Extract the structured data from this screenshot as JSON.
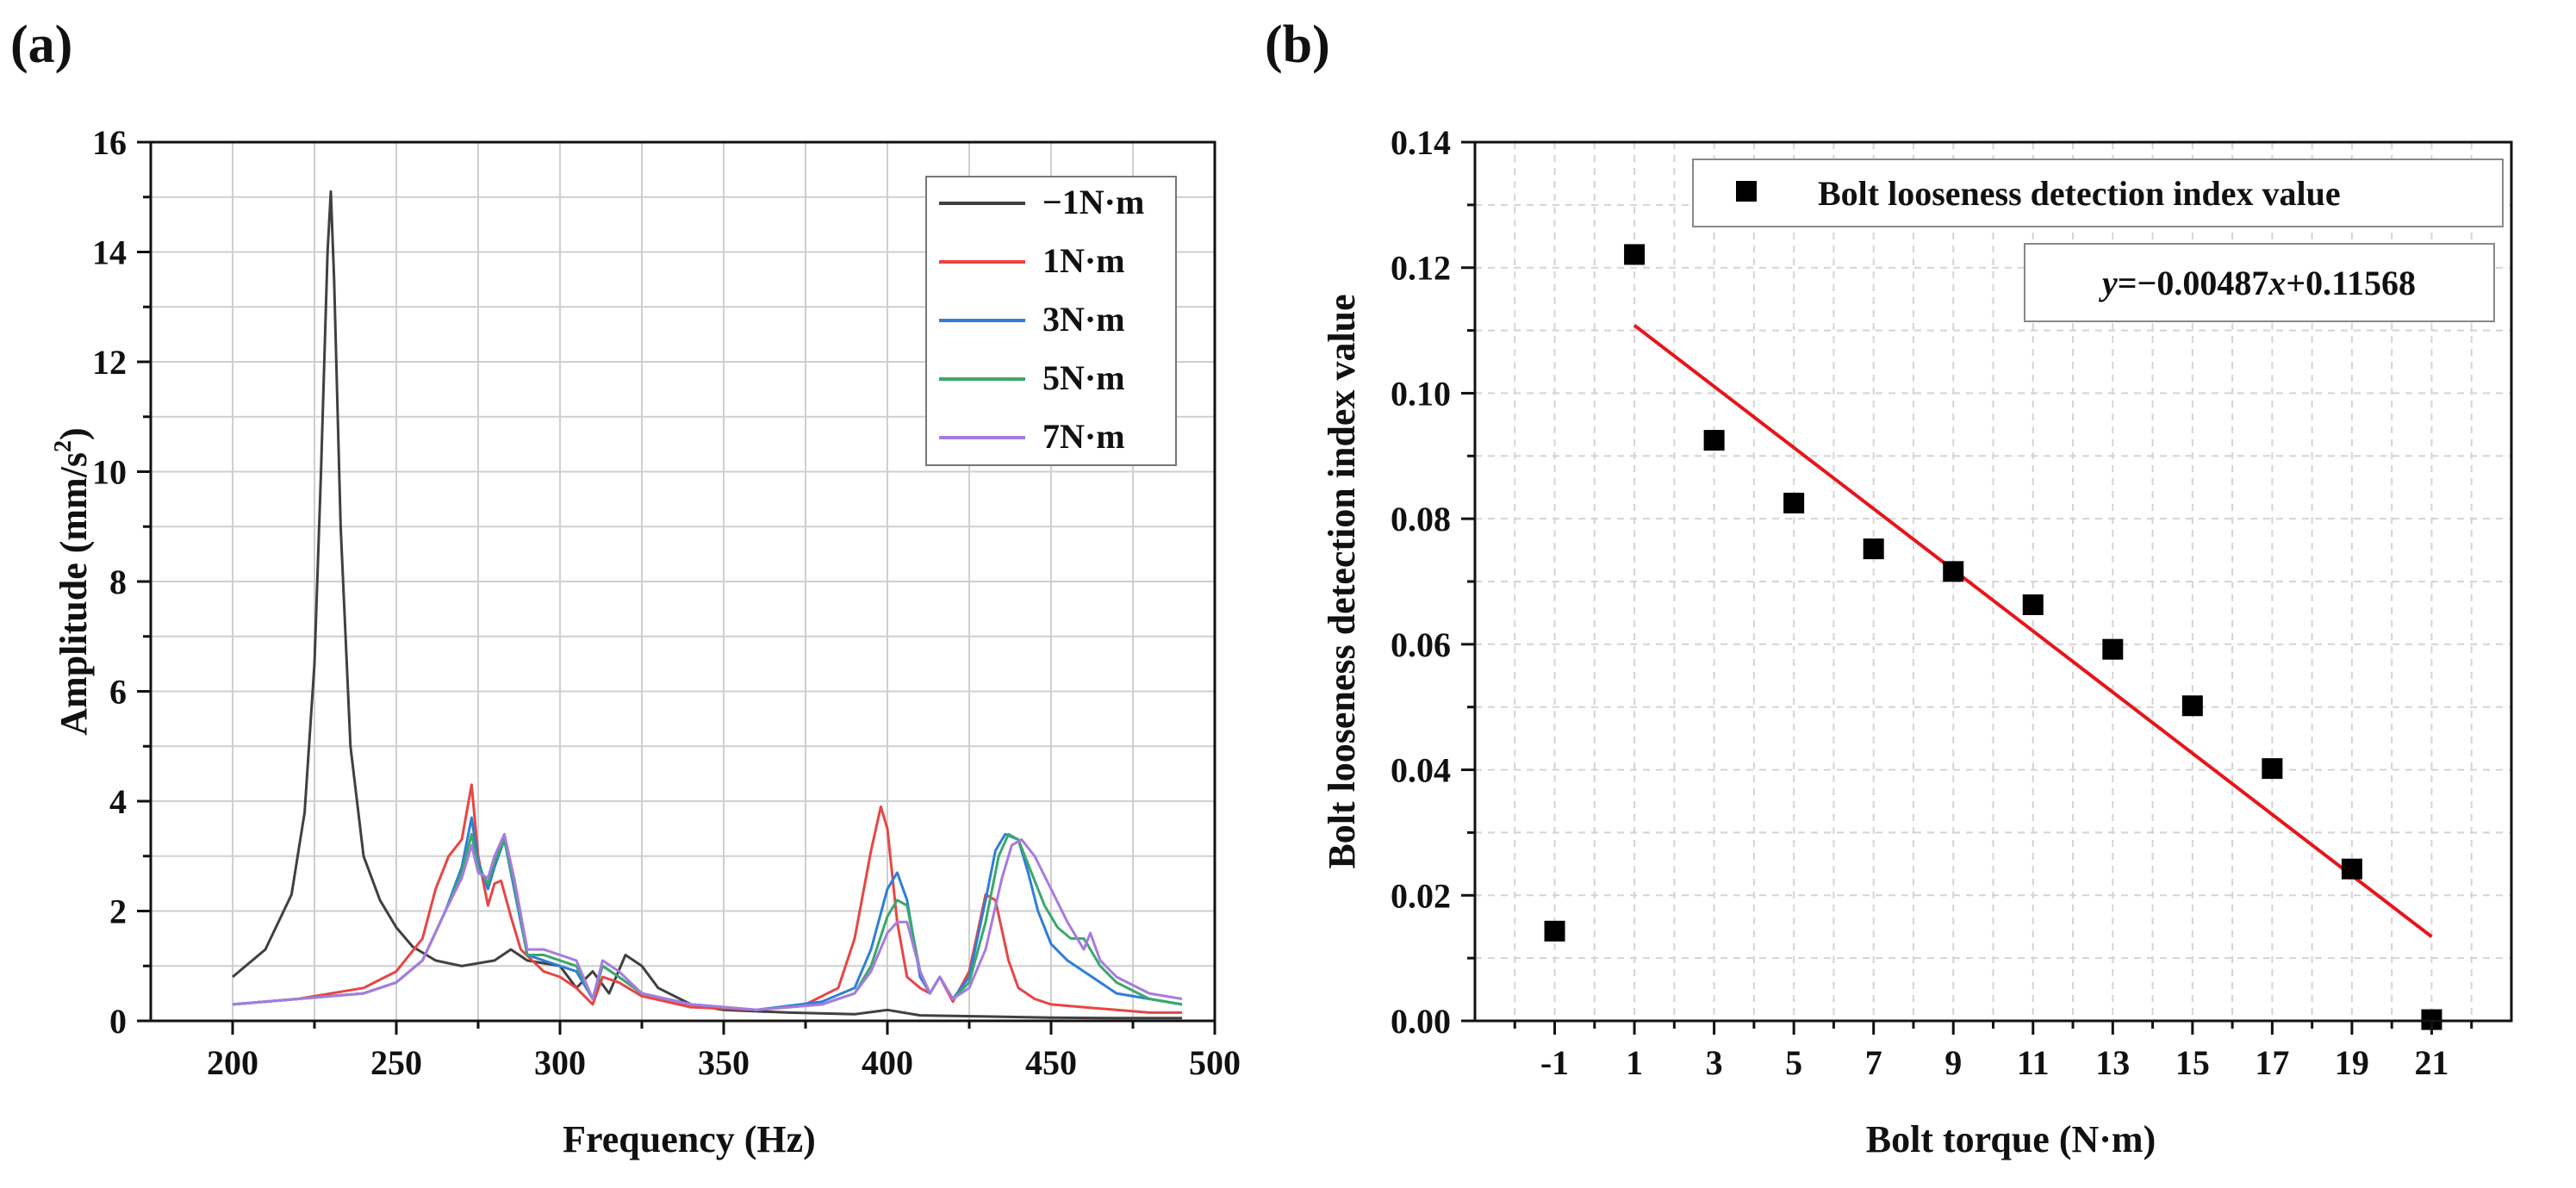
{
  "chart_data": [
    {
      "panel_label": "(a)",
      "type": "line",
      "xlabel": "Frequency (Hz)",
      "ylabel_main": "Amplitude (mm/s",
      "ylabel_sup": "2",
      "ylabel_end": ")",
      "xlim": [
        175,
        500
      ],
      "ylim": [
        0,
        16
      ],
      "xticks": [
        "200",
        "250",
        "300",
        "350",
        "400",
        "450",
        "500"
      ],
      "yticks": [
        "0",
        "2",
        "4",
        "6",
        "8",
        "10",
        "12",
        "14",
        "16"
      ],
      "grid": true,
      "legend_position": "top-right",
      "series": [
        {
          "name": "−1N·m",
          "color": "#404040",
          "x": [
            200,
            210,
            218,
            222,
            225,
            227,
            229,
            230,
            231,
            233,
            236,
            240,
            245,
            250,
            255,
            262,
            270,
            280,
            285,
            290,
            295,
            300,
            305,
            310,
            315,
            320,
            325,
            330,
            340,
            350,
            370,
            390,
            400,
            410,
            430,
            450,
            470,
            490
          ],
          "y": [
            0.8,
            1.3,
            2.3,
            3.8,
            6.5,
            10,
            14,
            15.1,
            13.5,
            9,
            5,
            3,
            2.2,
            1.7,
            1.35,
            1.1,
            1.0,
            1.1,
            1.3,
            1.1,
            1.05,
            1.0,
            0.6,
            0.9,
            0.5,
            1.2,
            1.0,
            0.6,
            0.3,
            0.2,
            0.15,
            0.12,
            0.2,
            0.1,
            0.08,
            0.06,
            0.05,
            0.05
          ]
        },
        {
          "name": "1N·m",
          "color": "#e84545",
          "x": [
            200,
            220,
            240,
            250,
            258,
            262,
            266,
            270,
            273,
            275,
            278,
            280,
            282,
            285,
            288,
            295,
            300,
            305,
            310,
            313,
            318,
            325,
            340,
            360,
            375,
            385,
            390,
            395,
            398,
            400,
            403,
            406,
            410,
            413,
            416,
            420,
            425,
            430,
            433,
            437,
            440,
            445,
            450,
            460,
            470,
            480,
            490
          ],
          "y": [
            0.3,
            0.4,
            0.6,
            0.9,
            1.5,
            2.4,
            3.0,
            3.3,
            4.3,
            3.0,
            2.1,
            2.5,
            2.55,
            1.9,
            1.3,
            0.9,
            0.8,
            0.6,
            0.3,
            0.8,
            0.7,
            0.45,
            0.25,
            0.2,
            0.3,
            0.6,
            1.5,
            3.1,
            3.9,
            3.5,
            1.8,
            0.8,
            0.6,
            0.5,
            0.8,
            0.35,
            0.9,
            2.3,
            2.2,
            1.1,
            0.6,
            0.4,
            0.3,
            0.25,
            0.2,
            0.15,
            0.15
          ]
        },
        {
          "name": "3N·m",
          "color": "#2f7ed8",
          "x": [
            200,
            220,
            240,
            250,
            258,
            265,
            270,
            273,
            275,
            278,
            280,
            283,
            286,
            290,
            295,
            300,
            305,
            310,
            313,
            318,
            325,
            340,
            360,
            380,
            390,
            395,
            400,
            403,
            406,
            410,
            413,
            416,
            420,
            425,
            430,
            433,
            436,
            440,
            443,
            446,
            450,
            455,
            460,
            470,
            480,
            490
          ],
          "y": [
            0.3,
            0.4,
            0.5,
            0.7,
            1.1,
            2.0,
            2.8,
            3.7,
            2.9,
            2.4,
            2.8,
            3.3,
            2.4,
            1.2,
            1.1,
            1.0,
            0.9,
            0.4,
            1.0,
            0.8,
            0.5,
            0.3,
            0.2,
            0.35,
            0.6,
            1.3,
            2.4,
            2.7,
            2.2,
            0.8,
            0.5,
            0.8,
            0.4,
            0.8,
            2.2,
            3.1,
            3.4,
            3.3,
            2.7,
            2.0,
            1.4,
            1.1,
            0.9,
            0.5,
            0.4,
            0.3
          ]
        },
        {
          "name": "5N·m",
          "color": "#3aa86b",
          "x": [
            200,
            220,
            240,
            250,
            258,
            265,
            270,
            273,
            275,
            278,
            280,
            283,
            286,
            290,
            295,
            300,
            305,
            310,
            313,
            318,
            325,
            340,
            360,
            380,
            390,
            395,
            400,
            403,
            406,
            410,
            413,
            416,
            420,
            425,
            430,
            434,
            437,
            440,
            444,
            448,
            452,
            456,
            460,
            465,
            470,
            480,
            490
          ],
          "y": [
            0.3,
            0.4,
            0.5,
            0.7,
            1.1,
            2.0,
            2.7,
            3.4,
            2.8,
            2.5,
            2.9,
            3.3,
            2.5,
            1.2,
            1.2,
            1.1,
            1.0,
            0.4,
            1.0,
            0.8,
            0.5,
            0.3,
            0.2,
            0.3,
            0.5,
            1.0,
            1.9,
            2.2,
            2.1,
            0.9,
            0.5,
            0.8,
            0.4,
            0.7,
            1.8,
            3.0,
            3.4,
            3.3,
            2.7,
            2.1,
            1.7,
            1.5,
            1.5,
            1.0,
            0.7,
            0.4,
            0.3
          ]
        },
        {
          "name": "7N·m",
          "color": "#a77be0",
          "x": [
            200,
            220,
            240,
            250,
            258,
            265,
            270,
            273,
            275,
            278,
            280,
            283,
            286,
            290,
            295,
            300,
            305,
            310,
            313,
            318,
            325,
            340,
            360,
            380,
            390,
            395,
            400,
            403,
            406,
            410,
            413,
            416,
            420,
            425,
            430,
            435,
            438,
            441,
            445,
            450,
            455,
            460,
            462,
            465,
            470,
            480,
            490
          ],
          "y": [
            0.3,
            0.4,
            0.5,
            0.7,
            1.1,
            2.0,
            2.6,
            3.2,
            2.7,
            2.6,
            3.0,
            3.4,
            2.6,
            1.3,
            1.3,
            1.2,
            1.1,
            0.4,
            1.1,
            0.9,
            0.5,
            0.3,
            0.2,
            0.3,
            0.5,
            0.9,
            1.6,
            1.8,
            1.8,
            0.9,
            0.5,
            0.8,
            0.4,
            0.6,
            1.3,
            2.6,
            3.2,
            3.3,
            3.0,
            2.4,
            1.8,
            1.3,
            1.6,
            1.1,
            0.8,
            0.5,
            0.4
          ]
        }
      ]
    },
    {
      "panel_label": "(b)",
      "type": "scatter",
      "xlabel": "Bolt torque (N·m)",
      "ylabel": "Bolt looseness detection index value",
      "xlim": [
        -3,
        23
      ],
      "ylim": [
        0,
        0.14
      ],
      "xticks": [
        "-1",
        "1",
        "3",
        "5",
        "7",
        "9",
        "11",
        "13",
        "15",
        "17",
        "19",
        "21"
      ],
      "yticks": [
        "0.00",
        "0.02",
        "0.04",
        "0.06",
        "0.08",
        "0.10",
        "0.12",
        "0.14"
      ],
      "grid": true,
      "legend_position": "top",
      "series": [
        {
          "name": "Bolt looseness detection index value",
          "color": "#000000",
          "x": [
            -1,
            1,
            3,
            5,
            7,
            9,
            11,
            13,
            15,
            17,
            19,
            21
          ],
          "y": [
            0.0143,
            0.1221,
            0.0925,
            0.0825,
            0.0752,
            0.0716,
            0.0663,
            0.0592,
            0.0502,
            0.0402,
            0.0242,
            0.0002
          ]
        }
      ],
      "fit": {
        "color": "#e8141a",
        "slope": -0.00487,
        "intercept": 0.11568,
        "x_range": [
          1,
          21
        ],
        "equation_y": "y",
        "equation_rest": "=−0.00487",
        "equation_x": "x",
        "equation_const": "+0.11568"
      }
    }
  ]
}
